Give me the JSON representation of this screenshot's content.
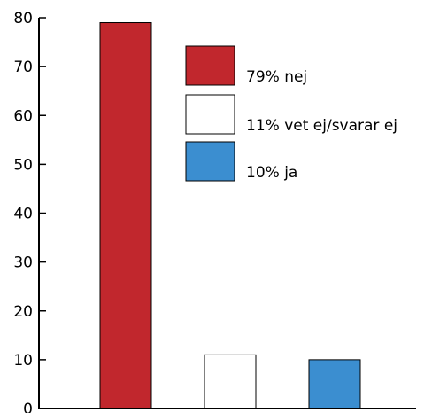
{
  "chart_data": {
    "type": "bar",
    "categories": [
      "nej",
      "vet ej/svarar ej",
      "ja"
    ],
    "values": [
      79,
      11,
      10
    ],
    "colors": [
      "#c1272d",
      "#ffffff",
      "#3b8ed0"
    ],
    "title": "",
    "xlabel": "",
    "ylabel": "",
    "ylim": [
      0,
      80
    ],
    "yticks": [
      0,
      10,
      20,
      30,
      40,
      50,
      60,
      70,
      80
    ],
    "ytick_labels": [
      "0",
      "10",
      "20",
      "30",
      "40",
      "50",
      "60",
      "70",
      "80"
    ],
    "legend": [
      {
        "label": "79% nej",
        "color": "#c1272d"
      },
      {
        "label": "11% vet ej/svarar ej",
        "color": "#ffffff"
      },
      {
        "label": "10% ja",
        "color": "#3b8ed0"
      }
    ],
    "legend_position": "top-right",
    "grid": false
  }
}
